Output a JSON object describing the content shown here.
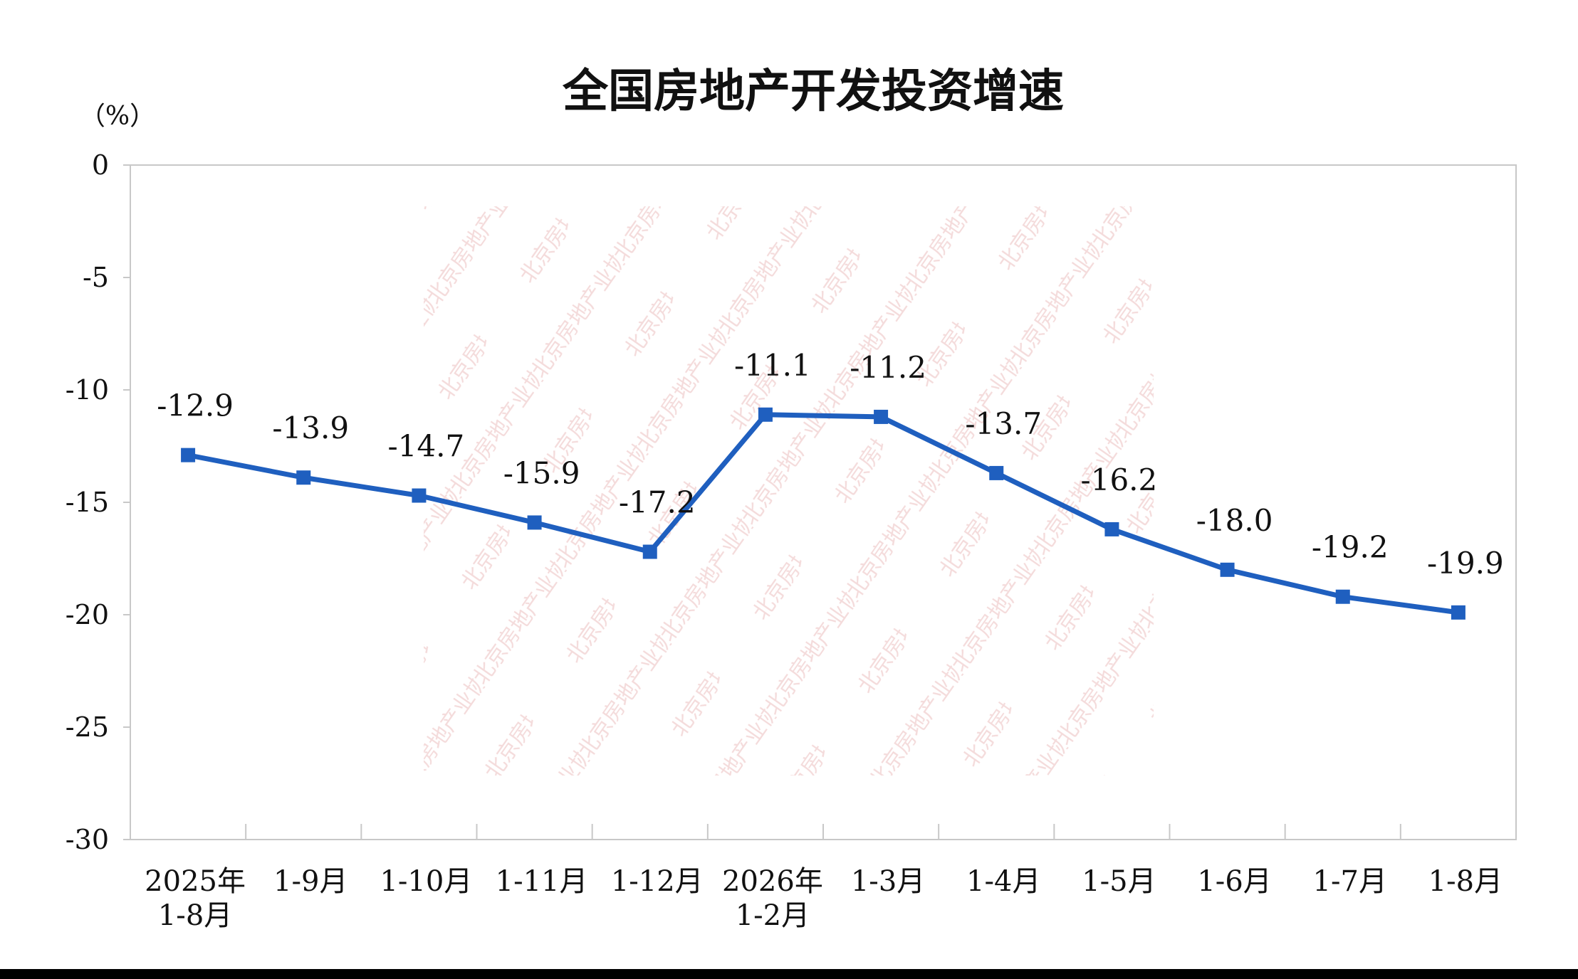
{
  "chart_data": {
    "type": "line",
    "title": "全国房地产开发投资增速",
    "ylabel": "（%）",
    "ylim": [
      -30,
      0
    ],
    "yticks": [
      0,
      -5,
      -10,
      -15,
      -20,
      -25,
      -30
    ],
    "categories": [
      [
        "2025年",
        "1-8月"
      ],
      [
        "1-9月"
      ],
      [
        "1-10月"
      ],
      [
        "1-11月"
      ],
      [
        "1-12月"
      ],
      [
        "2026年",
        "1-2月"
      ],
      [
        "1-3月"
      ],
      [
        "1-4月"
      ],
      [
        "1-5月"
      ],
      [
        "1-6月"
      ],
      [
        "1-7月"
      ],
      [
        "1-8月"
      ]
    ],
    "series": [
      {
        "values": [
          -12.9,
          -13.9,
          -14.7,
          -15.9,
          -17.2,
          -11.1,
          -11.2,
          -13.7,
          -16.2,
          -18.0,
          -19.2,
          -19.9
        ],
        "labels": [
          "-12.9",
          "-13.9",
          "-14.7",
          "-15.9",
          "-17.2",
          "-11.1",
          "-11.2",
          "-13.7",
          "-16.2",
          "-18.0",
          "-19.2",
          "-19.9"
        ],
        "color": "#1f5fbf"
      }
    ],
    "grid": false,
    "legend": "none"
  },
  "watermark": {
    "text": "北京房地产业协会",
    "color": "#f3d7d7"
  }
}
